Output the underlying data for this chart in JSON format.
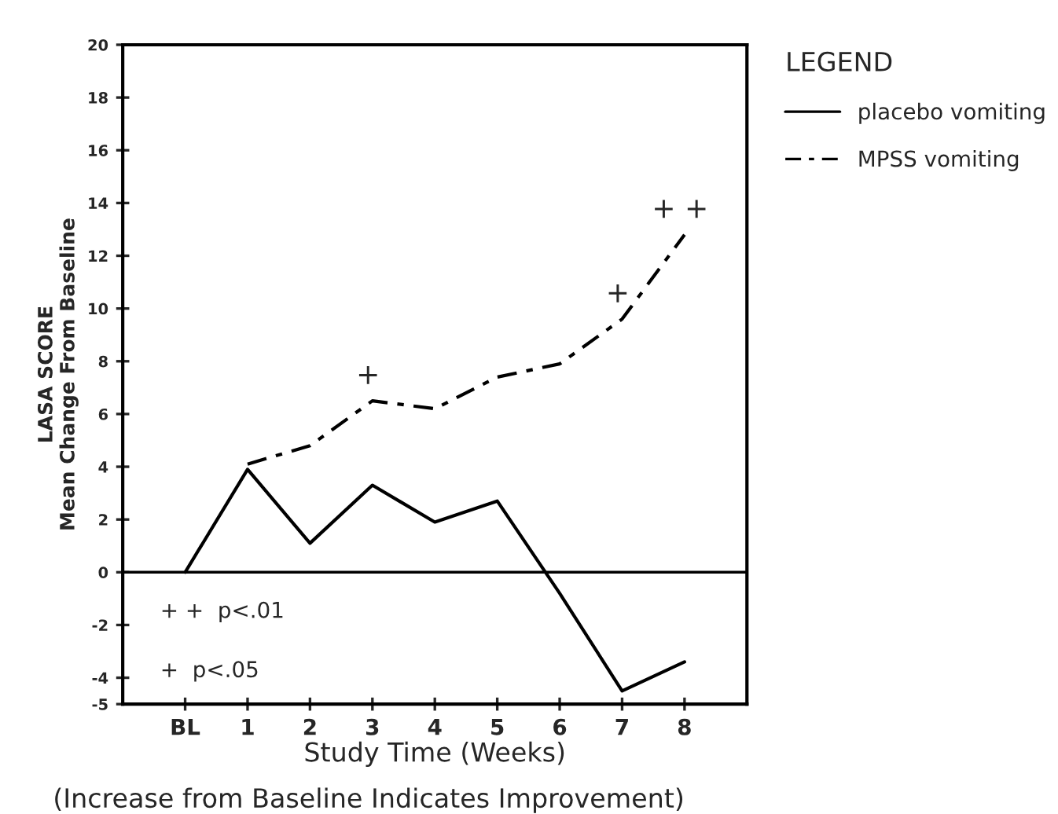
{
  "chart_data": {
    "type": "line",
    "xlabel": "Study Time (Weeks)",
    "ylabel": "LASA SCORE\nMean Change From Baseline",
    "categories": [
      "BL",
      "1",
      "2",
      "3",
      "4",
      "5",
      "6",
      "7",
      "8"
    ],
    "series": [
      {
        "name": "placebo vomiting",
        "color": "#000000",
        "line_style": "solid",
        "values": [
          0,
          3.9,
          1.1,
          3.3,
          1.9,
          2.7,
          -0.8,
          -4.5,
          -3.4
        ]
      },
      {
        "name": "MPSS vomiting",
        "color": "#000000",
        "line_style": "dashed",
        "values": [
          null,
          4.1,
          4.8,
          6.5,
          6.2,
          7.4,
          7.9,
          9.6,
          12.8
        ]
      }
    ],
    "ylim": [
      -5,
      20
    ],
    "yticks": [
      -5,
      -4,
      -2,
      0,
      2,
      4,
      6,
      8,
      10,
      12,
      14,
      16,
      18,
      20
    ],
    "ref_lines": [
      {
        "axis": "y",
        "value": 0,
        "color": "#000000",
        "line_style": "solid"
      }
    ],
    "legend_title": "LEGEND",
    "legend": "top right",
    "grid": false,
    "marker": "none",
    "annotations": [
      {
        "text": "+",
        "x": "3",
        "y": 6.5
      },
      {
        "text": "+",
        "x": "7",
        "y": 9.6
      },
      {
        "text": "+ +",
        "x": "8",
        "y": 12.8
      },
      "+ +  p<.01",
      "+  p<.05",
      "(Increase from Baseline Indicates Improvement)"
    ]
  }
}
